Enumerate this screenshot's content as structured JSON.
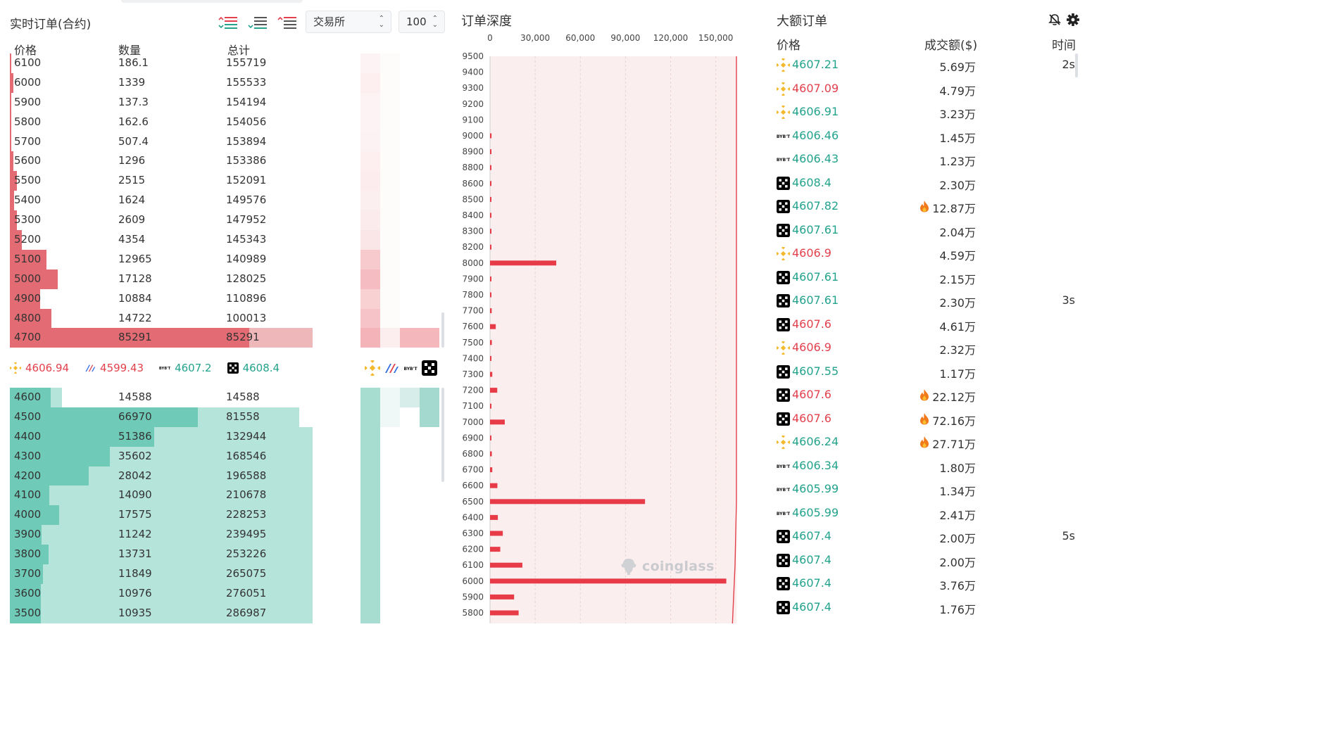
{
  "orderbook": {
    "title": "实时订单(合约)",
    "exchange_select": "交易所",
    "depth_select": "100",
    "headers": {
      "price": "价格",
      "qty": "数量",
      "total": "总计"
    },
    "asks": [
      {
        "price": "6100",
        "qty": "186.1",
        "total": "155719"
      },
      {
        "price": "6000",
        "qty": "1339",
        "total": "155533"
      },
      {
        "price": "5900",
        "qty": "137.3",
        "total": "154194"
      },
      {
        "price": "5800",
        "qty": "162.6",
        "total": "154056"
      },
      {
        "price": "5700",
        "qty": "507.4",
        "total": "153894"
      },
      {
        "price": "5600",
        "qty": "1296",
        "total": "153386"
      },
      {
        "price": "5500",
        "qty": "2515",
        "total": "152091"
      },
      {
        "price": "5400",
        "qty": "1624",
        "total": "149576"
      },
      {
        "price": "5300",
        "qty": "2609",
        "total": "147952"
      },
      {
        "price": "5200",
        "qty": "4354",
        "total": "145343"
      },
      {
        "price": "5100",
        "qty": "12965",
        "total": "140989"
      },
      {
        "price": "5000",
        "qty": "17128",
        "total": "128025"
      },
      {
        "price": "4900",
        "qty": "10884",
        "total": "110896"
      },
      {
        "price": "4800",
        "qty": "14722",
        "total": "100013"
      },
      {
        "price": "4700",
        "qty": "85291",
        "total": "85291"
      }
    ],
    "bids": [
      {
        "price": "4600",
        "qty": "14588",
        "total": "14588"
      },
      {
        "price": "4500",
        "qty": "66970",
        "total": "81558"
      },
      {
        "price": "4400",
        "qty": "51386",
        "total": "132944"
      },
      {
        "price": "4300",
        "qty": "35602",
        "total": "168546"
      },
      {
        "price": "4200",
        "qty": "28042",
        "total": "196588"
      },
      {
        "price": "4100",
        "qty": "14090",
        "total": "210678"
      },
      {
        "price": "4000",
        "qty": "17575",
        "total": "228253"
      },
      {
        "price": "3900",
        "qty": "11242",
        "total": "239495"
      },
      {
        "price": "3800",
        "qty": "13731",
        "total": "253226"
      },
      {
        "price": "3700",
        "qty": "11849",
        "total": "265075"
      },
      {
        "price": "3600",
        "qty": "10976",
        "total": "276051"
      },
      {
        "price": "3500",
        "qty": "10935",
        "total": "286987"
      }
    ],
    "exchange_prices": [
      {
        "exchange": "binance",
        "price": "4606.94",
        "color": "#e2404c"
      },
      {
        "exchange": "bitmex",
        "price": "4599.43",
        "color": "#e2404c"
      },
      {
        "exchange": "bybit",
        "price": "4607.2",
        "color": "#23a28c"
      },
      {
        "exchange": "okx",
        "price": "4608.4",
        "color": "#23a28c"
      }
    ],
    "colors": {
      "ask": "#e36b73",
      "ask_light": "#eeb7ba",
      "bid": "#6fcab7",
      "bid_light": "#b5e4da"
    }
  },
  "depth": {
    "title": "订单深度",
    "watermark": "coinglass",
    "x_ticks": [
      "0",
      "30,000",
      "60,000",
      "90,000",
      "120,000",
      "150,000"
    ]
  },
  "chart_data": {
    "type": "bar",
    "orientation": "horizontal",
    "title": "订单深度",
    "xlim": [
      0,
      160000
    ],
    "x_ticks": [
      0,
      30000,
      60000,
      90000,
      120000,
      150000
    ],
    "categories": [
      "9500",
      "9400",
      "9300",
      "9200",
      "9100",
      "9000",
      "8900",
      "8800",
      "8600",
      "8500",
      "8400",
      "8300",
      "8200",
      "8000",
      "7900",
      "7800",
      "7700",
      "7600",
      "7500",
      "7400",
      "7300",
      "7200",
      "7100",
      "7000",
      "6900",
      "6800",
      "6700",
      "6600",
      "6500",
      "6400",
      "6300",
      "6200",
      "6100",
      "6000",
      "5900",
      "5800"
    ],
    "values": [
      0,
      0,
      0,
      0,
      0,
      1000,
      200,
      300,
      400,
      800,
      300,
      200,
      300,
      44000,
      900,
      800,
      1100,
      3800,
      1200,
      900,
      1500,
      4800,
      800,
      9800,
      900,
      1200,
      1500,
      4900,
      103000,
      5200,
      8500,
      6800,
      21500,
      157000,
      16000,
      19000
    ],
    "cumulative_line_color": "#e2404c",
    "bar_color": "#e83b48"
  },
  "large_orders": {
    "title": "大额订单",
    "headers": {
      "price": "价格",
      "amount": "成交额($)",
      "time": "时间"
    },
    "rows": [
      {
        "ex": "binance",
        "price": "4607.21",
        "side": "buy",
        "amount": "5.69万",
        "fire": false,
        "time": "2s"
      },
      {
        "ex": "binance",
        "price": "4607.09",
        "side": "sell",
        "amount": "4.79万",
        "fire": false,
        "time": ""
      },
      {
        "ex": "binance",
        "price": "4606.91",
        "side": "buy",
        "amount": "3.23万",
        "fire": false,
        "time": ""
      },
      {
        "ex": "bybit",
        "price": "4606.46",
        "side": "buy",
        "amount": "1.45万",
        "fire": false,
        "time": ""
      },
      {
        "ex": "bybit",
        "price": "4606.43",
        "side": "buy",
        "amount": "1.23万",
        "fire": false,
        "time": ""
      },
      {
        "ex": "okx",
        "price": "4608.4",
        "side": "buy",
        "amount": "2.30万",
        "fire": false,
        "time": ""
      },
      {
        "ex": "okx",
        "price": "4607.82",
        "side": "buy",
        "amount": "12.87万",
        "fire": true,
        "time": ""
      },
      {
        "ex": "okx",
        "price": "4607.61",
        "side": "buy",
        "amount": "2.04万",
        "fire": false,
        "time": ""
      },
      {
        "ex": "binance",
        "price": "4606.9",
        "side": "sell",
        "amount": "4.59万",
        "fire": false,
        "time": ""
      },
      {
        "ex": "okx",
        "price": "4607.61",
        "side": "buy",
        "amount": "2.15万",
        "fire": false,
        "time": ""
      },
      {
        "ex": "okx",
        "price": "4607.61",
        "side": "buy",
        "amount": "2.30万",
        "fire": false,
        "time": "3s"
      },
      {
        "ex": "okx",
        "price": "4607.6",
        "side": "sell",
        "amount": "4.61万",
        "fire": false,
        "time": ""
      },
      {
        "ex": "binance",
        "price": "4606.9",
        "side": "sell",
        "amount": "2.32万",
        "fire": false,
        "time": ""
      },
      {
        "ex": "okx",
        "price": "4607.55",
        "side": "buy",
        "amount": "1.17万",
        "fire": false,
        "time": ""
      },
      {
        "ex": "okx",
        "price": "4607.6",
        "side": "sell",
        "amount": "22.12万",
        "fire": true,
        "time": ""
      },
      {
        "ex": "okx",
        "price": "4607.6",
        "side": "sell",
        "amount": "72.16万",
        "fire": true,
        "time": ""
      },
      {
        "ex": "binance",
        "price": "4606.24",
        "side": "buy",
        "amount": "27.71万",
        "fire": true,
        "time": ""
      },
      {
        "ex": "bybit",
        "price": "4606.34",
        "side": "buy",
        "amount": "1.80万",
        "fire": false,
        "time": ""
      },
      {
        "ex": "bybit",
        "price": "4605.99",
        "side": "buy",
        "amount": "1.34万",
        "fire": false,
        "time": ""
      },
      {
        "ex": "bybit",
        "price": "4605.99",
        "side": "buy",
        "amount": "2.41万",
        "fire": false,
        "time": ""
      },
      {
        "ex": "okx",
        "price": "4607.4",
        "side": "buy",
        "amount": "2.00万",
        "fire": false,
        "time": "5s"
      },
      {
        "ex": "okx",
        "price": "4607.4",
        "side": "buy",
        "amount": "2.00万",
        "fire": false,
        "time": ""
      },
      {
        "ex": "okx",
        "price": "4607.4",
        "side": "buy",
        "amount": "3.76万",
        "fire": false,
        "time": ""
      },
      {
        "ex": "okx",
        "price": "4607.4",
        "side": "buy",
        "amount": "1.76万",
        "fire": false,
        "time": ""
      }
    ]
  }
}
